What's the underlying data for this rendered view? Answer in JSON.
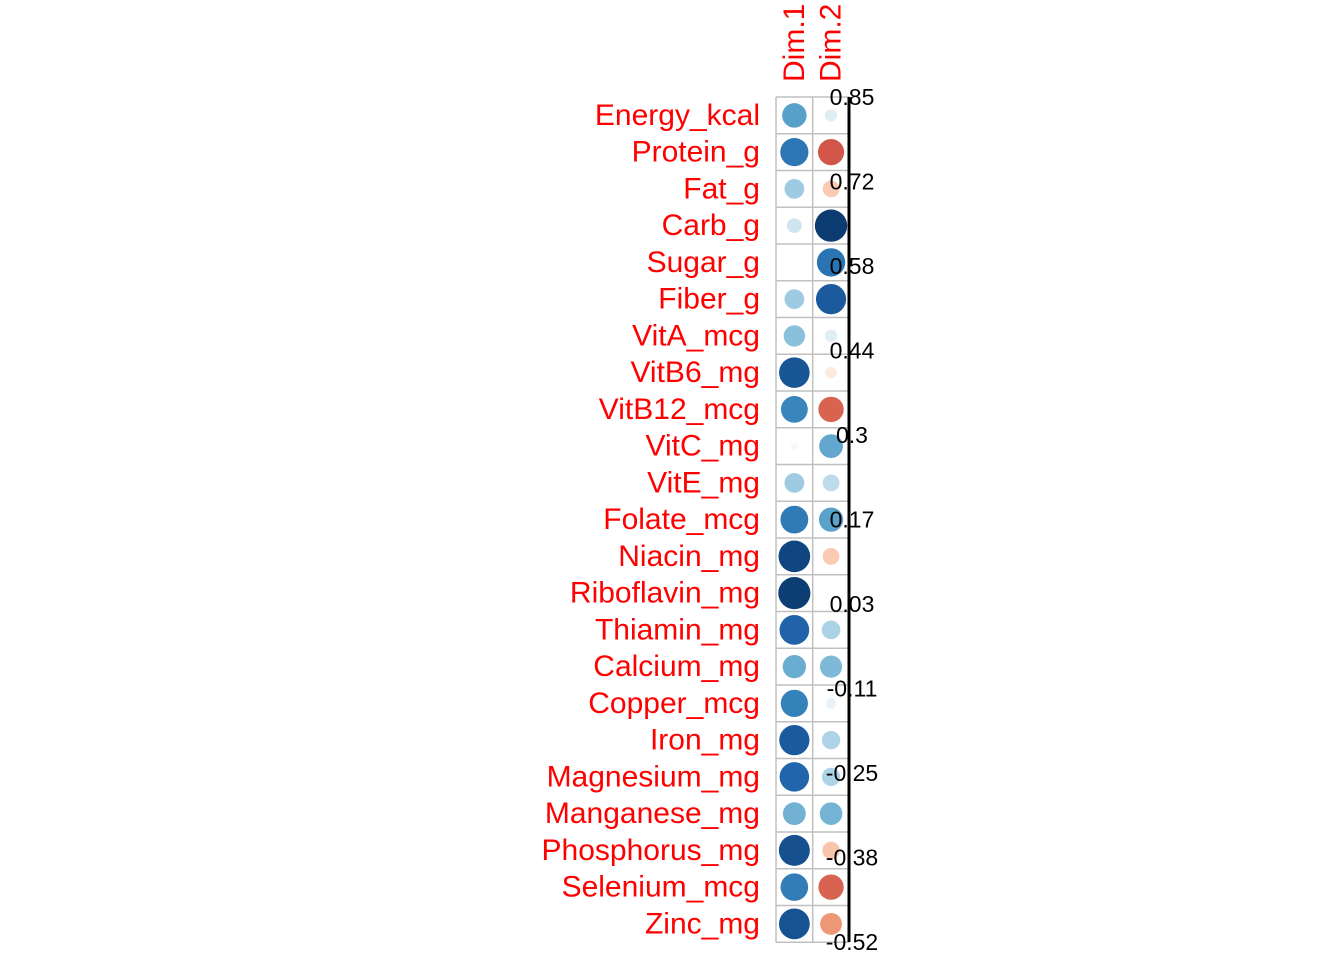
{
  "chart_data": {
    "type": "heatmap",
    "style": "correlation-circle-plot",
    "columns": [
      "Dim.1",
      "Dim.2"
    ],
    "rows": [
      "Energy_kcal",
      "Protein_g",
      "Fat_g",
      "Carb_g",
      "Sugar_g",
      "Fiber_g",
      "VitA_mcg",
      "VitB6_mg",
      "VitB12_mcg",
      "VitC_mg",
      "VitE_mg",
      "Folate_mcg",
      "Niacin_mg",
      "Riboflavin_mg",
      "Thiamin_mg",
      "Calcium_mg",
      "Copper_mcg",
      "Iron_mg",
      "Magnesium_mg",
      "Manganese_mg",
      "Phosphorus_mg",
      "Selenium_mcg",
      "Zinc_mg"
    ],
    "values": [
      [
        0.55,
        0.14
      ],
      [
        0.73,
        -0.63
      ],
      [
        0.36,
        -0.26
      ],
      [
        0.2,
        0.96
      ],
      [
        0.0,
        0.74
      ],
      [
        0.36,
        0.84
      ],
      [
        0.42,
        0.14
      ],
      [
        0.86,
        -0.12
      ],
      [
        0.66,
        -0.59
      ],
      [
        0.05,
        0.52
      ],
      [
        0.36,
        0.26
      ],
      [
        0.71,
        0.54
      ],
      [
        0.92,
        -0.26
      ],
      [
        0.95,
        0.0
      ],
      [
        0.81,
        0.32
      ],
      [
        0.5,
        0.45
      ],
      [
        0.68,
        0.1
      ],
      [
        0.84,
        0.31
      ],
      [
        0.8,
        0.31
      ],
      [
        0.48,
        0.47
      ],
      [
        0.88,
        -0.28
      ],
      [
        0.7,
        -0.59
      ],
      [
        0.87,
        -0.44
      ]
    ],
    "colorbar": {
      "ticks": [
        "0.85",
        "0.72",
        "0.58",
        "0.44",
        "0.3",
        "0.17",
        "0.03",
        "-0.11",
        "-0.25",
        "-0.38",
        "-0.52"
      ],
      "range": [
        -0.52,
        0.85
      ]
    },
    "colors": {
      "label": "#ff0000",
      "grid": "#c0c0c0",
      "tick_text": "#000000",
      "palette": [
        "#67001f",
        "#b2182b",
        "#d6604d",
        "#f4a582",
        "#fddbc7",
        "#ffffff",
        "#d1e5f0",
        "#92c5de",
        "#4393c3",
        "#2166ac",
        "#053061"
      ]
    }
  }
}
